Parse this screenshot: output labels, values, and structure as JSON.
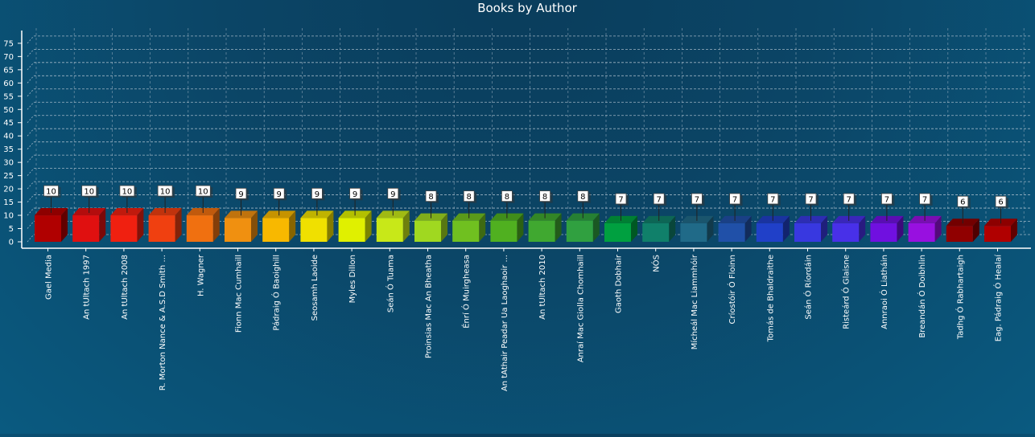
{
  "chart_data": {
    "type": "bar",
    "title": "Books by Author",
    "xlabel": "",
    "ylabel": "",
    "ylim": [
      0,
      78
    ],
    "yticks": [
      0,
      5,
      10,
      15,
      20,
      25,
      30,
      35,
      40,
      45,
      50,
      55,
      60,
      65,
      70,
      75
    ],
    "grid": true,
    "legend": "none",
    "categories": [
      "Gael Media",
      "An tUltach 1997",
      "An tUltach 2008",
      "R. Morton Nance & A.S.D Smith ...",
      "H. Wagner",
      "Fionn Mac Cumhaill",
      "Pádraig Ó Baoighill",
      "Seosamh Laoide",
      "Myles Dillon",
      "Seán Ó Tuama",
      "Proinsias Mac An Bheatha",
      "Énrí Ó Muirgheasa",
      "An tAthair Peadar Ua Laoghaoir ...",
      "An tUltach 2010",
      "Anraí Mac Giolla Chomhaill",
      "Gaoth Dobhair",
      "NÓS",
      "Mícheál Mac Liammhóir",
      "Críostóir Ó Floinn",
      "Tomás de Bhaldraithe",
      "Seán Ó Ríordáin",
      "Risteárd Ó Glaisne",
      "Annraoi Ó Liatháin",
      "Breandán Ó Doibhlin",
      "Tadhg Ó Rabhartaigh",
      "Eag. Pádraig Ó Healaí"
    ],
    "values": [
      10,
      10,
      10,
      10,
      10,
      9,
      9,
      9,
      9,
      9,
      8,
      8,
      8,
      8,
      8,
      7,
      7,
      7,
      7,
      7,
      7,
      7,
      7,
      7,
      6,
      6
    ],
    "colors": [
      "#b00000",
      "#e01010",
      "#f02010",
      "#f04010",
      "#f07010",
      "#f09010",
      "#f8b800",
      "#f0e000",
      "#e0f000",
      "#c8e818",
      "#a0d820",
      "#70c020",
      "#50b020",
      "#40a830",
      "#30a040",
      "#00a040",
      "#10806a",
      "#206a88",
      "#2050a8",
      "#2040c8",
      "#3838e0",
      "#4830e8",
      "#7010e0",
      "#9810e0",
      "#900000",
      "#b00000"
    ]
  }
}
